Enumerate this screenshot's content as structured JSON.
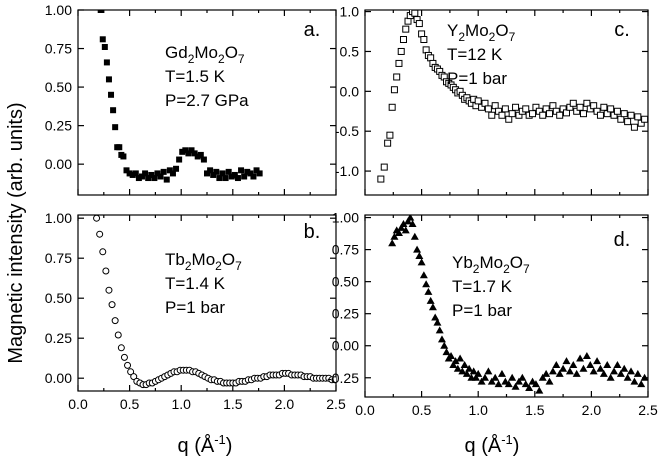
{
  "figure": {
    "ylabel": "Magnetic intensity (arb. units)",
    "xlabel_left": {
      "main": "q (Å",
      "sup": "-1",
      "end": ")"
    },
    "xlabel_right": {
      "main": "q (Å",
      "sup": "-1",
      "end": ")"
    }
  },
  "chart_data": [
    {
      "id": "a",
      "type": "scatter",
      "marker": "square-filled",
      "panel_label": "a.",
      "compound": {
        "base": "Gd",
        "sub1": "2",
        "mid": "Mo",
        "sub2": "2",
        "end": "O",
        "sub3": "7"
      },
      "conditions": [
        "T=1.5 K",
        "P=2.7 GPa"
      ],
      "xlim": [
        0,
        2.5
      ],
      "ylim": [
        -0.2,
        1.0
      ],
      "yticks": [
        "1.00",
        "0.75",
        "0.50",
        "0.25",
        "0.00"
      ],
      "ytick_values": [
        1.0,
        0.75,
        0.5,
        0.25,
        0.0
      ],
      "xticks": [],
      "x": [
        0.22,
        0.24,
        0.26,
        0.28,
        0.3,
        0.32,
        0.34,
        0.36,
        0.38,
        0.4,
        0.42,
        0.44,
        0.47,
        0.5,
        0.53,
        0.56,
        0.59,
        0.62,
        0.65,
        0.68,
        0.71,
        0.74,
        0.77,
        0.8,
        0.83,
        0.86,
        0.89,
        0.92,
        0.95,
        0.98,
        1.01,
        1.04,
        1.07,
        1.1,
        1.13,
        1.16,
        1.19,
        1.22,
        1.25,
        1.28,
        1.31,
        1.34,
        1.37,
        1.4,
        1.43,
        1.46,
        1.49,
        1.52,
        1.55,
        1.58,
        1.61,
        1.64,
        1.67,
        1.7,
        1.73,
        1.76
      ],
      "y": [
        1.0,
        0.81,
        0.76,
        0.66,
        0.55,
        0.45,
        0.35,
        0.24,
        0.11,
        0.11,
        0.06,
        0.05,
        -0.04,
        -0.06,
        -0.07,
        -0.06,
        -0.09,
        -0.08,
        -0.06,
        -0.09,
        -0.07,
        -0.09,
        -0.06,
        -0.08,
        -0.05,
        -0.1,
        -0.04,
        -0.06,
        -0.03,
        0.03,
        0.08,
        0.09,
        0.07,
        0.09,
        0.07,
        0.05,
        0.06,
        0.03,
        -0.06,
        -0.04,
        -0.07,
        -0.05,
        -0.09,
        -0.06,
        -0.09,
        -0.05,
        -0.08,
        -0.07,
        -0.09,
        -0.04,
        -0.08,
        -0.05,
        -0.06,
        -0.08,
        -0.04,
        -0.06
      ]
    },
    {
      "id": "b",
      "type": "scatter",
      "marker": "circle-open",
      "panel_label": "b.",
      "compound": {
        "base": "Tb",
        "sub1": "2",
        "mid": "Mo",
        "sub2": "2",
        "end": "O",
        "sub3": "7"
      },
      "conditions": [
        "T=1.4 K",
        "P=1 bar"
      ],
      "xlim": [
        0,
        2.5
      ],
      "ylim": [
        -0.08,
        1.02
      ],
      "yticks": [
        "1.00",
        "0.75",
        "0.50",
        "0.25",
        "0.00"
      ],
      "ytick_values": [
        1.0,
        0.75,
        0.5,
        0.25,
        0.0
      ],
      "xticks": [
        "0.0",
        "0.5",
        "1.0",
        "1.5",
        "2.0",
        "2.5"
      ],
      "xtick_values": [
        0.0,
        0.5,
        1.0,
        1.5,
        2.0,
        2.5
      ],
      "x": [
        0.18,
        0.21,
        0.24,
        0.27,
        0.3,
        0.33,
        0.36,
        0.39,
        0.42,
        0.45,
        0.48,
        0.51,
        0.54,
        0.57,
        0.6,
        0.63,
        0.66,
        0.69,
        0.72,
        0.75,
        0.78,
        0.81,
        0.84,
        0.87,
        0.9,
        0.93,
        0.96,
        0.99,
        1.02,
        1.05,
        1.08,
        1.11,
        1.14,
        1.17,
        1.2,
        1.23,
        1.26,
        1.29,
        1.32,
        1.35,
        1.38,
        1.41,
        1.44,
        1.47,
        1.5,
        1.53,
        1.56,
        1.59,
        1.62,
        1.65,
        1.68,
        1.71,
        1.74,
        1.77,
        1.8,
        1.83,
        1.86,
        1.89,
        1.92,
        1.95,
        1.98,
        2.01,
        2.04,
        2.07,
        2.1,
        2.13,
        2.16,
        2.19,
        2.22,
        2.25,
        2.28,
        2.31,
        2.34,
        2.37,
        2.4,
        2.43,
        2.46,
        2.49
      ],
      "y": [
        1.0,
        0.9,
        0.79,
        0.67,
        0.55,
        0.46,
        0.36,
        0.27,
        0.19,
        0.13,
        0.08,
        0.04,
        0.01,
        -0.02,
        -0.03,
        -0.04,
        -0.04,
        -0.03,
        -0.03,
        -0.02,
        -0.01,
        0.0,
        0.01,
        0.02,
        0.03,
        0.04,
        0.04,
        0.05,
        0.05,
        0.05,
        0.05,
        0.04,
        0.04,
        0.03,
        0.02,
        0.01,
        0.0,
        -0.01,
        -0.01,
        -0.02,
        -0.02,
        -0.03,
        -0.03,
        -0.03,
        -0.03,
        -0.03,
        -0.02,
        -0.02,
        -0.02,
        -0.01,
        -0.01,
        0.0,
        0.0,
        0.0,
        0.01,
        0.01,
        0.02,
        0.02,
        0.02,
        0.02,
        0.03,
        0.03,
        0.03,
        0.02,
        0.02,
        0.02,
        0.02,
        0.01,
        0.01,
        0.01,
        0.0,
        0.0,
        0.0,
        0.0,
        0.0,
        0.0,
        -0.01,
        -0.01
      ]
    },
    {
      "id": "c",
      "type": "scatter",
      "marker": "square-open",
      "panel_label": "c.",
      "compound": {
        "base": "Y",
        "sub1": "2",
        "mid": "Mo",
        "sub2": "2",
        "end": "O",
        "sub3": "7"
      },
      "conditions": [
        "T=12 K",
        "P=1 bar"
      ],
      "xlim": [
        0,
        2.5
      ],
      "ylim": [
        -1.3,
        1.02
      ],
      "yticks": [
        "1.0",
        "0.5",
        "0.0",
        "-0.5",
        "-1.0"
      ],
      "ytick_values": [
        1.0,
        0.5,
        0.0,
        -0.5,
        -1.0
      ],
      "xticks": [],
      "x": [
        0.14,
        0.17,
        0.2,
        0.22,
        0.24,
        0.26,
        0.28,
        0.3,
        0.32,
        0.34,
        0.36,
        0.38,
        0.4,
        0.42,
        0.44,
        0.46,
        0.48,
        0.5,
        0.52,
        0.54,
        0.56,
        0.58,
        0.6,
        0.62,
        0.64,
        0.66,
        0.68,
        0.7,
        0.72,
        0.74,
        0.76,
        0.78,
        0.8,
        0.82,
        0.84,
        0.86,
        0.88,
        0.9,
        0.92,
        0.94,
        0.96,
        0.98,
        1.0,
        1.03,
        1.06,
        1.09,
        1.12,
        1.15,
        1.18,
        1.21,
        1.24,
        1.27,
        1.3,
        1.33,
        1.36,
        1.39,
        1.42,
        1.45,
        1.48,
        1.51,
        1.54,
        1.57,
        1.6,
        1.63,
        1.66,
        1.69,
        1.72,
        1.75,
        1.78,
        1.81,
        1.84,
        1.87,
        1.9,
        1.93,
        1.96,
        1.99,
        2.02,
        2.05,
        2.08,
        2.11,
        2.14,
        2.17,
        2.2,
        2.23,
        2.26,
        2.29,
        2.32,
        2.35,
        2.38,
        2.41,
        2.44,
        2.47
      ],
      "y": [
        -1.1,
        -0.95,
        -0.65,
        -0.55,
        -0.2,
        0.02,
        0.18,
        0.35,
        0.5,
        0.65,
        0.78,
        0.88,
        0.95,
        1.0,
        0.98,
        0.9,
        0.85,
        0.72,
        0.65,
        0.52,
        0.45,
        0.42,
        0.35,
        0.3,
        0.28,
        0.25,
        0.2,
        0.18,
        0.12,
        0.1,
        0.08,
        0.05,
        0.02,
        -0.02,
        0.0,
        -0.05,
        -0.1,
        -0.08,
        -0.12,
        -0.15,
        -0.1,
        -0.18,
        -0.12,
        -0.2,
        -0.15,
        -0.22,
        -0.3,
        -0.18,
        -0.25,
        -0.3,
        -0.22,
        -0.35,
        -0.28,
        -0.2,
        -0.3,
        -0.25,
        -0.22,
        -0.3,
        -0.28,
        -0.2,
        -0.25,
        -0.3,
        -0.22,
        -0.28,
        -0.18,
        -0.25,
        -0.3,
        -0.22,
        -0.27,
        -0.2,
        -0.15,
        -0.25,
        -0.2,
        -0.28,
        -0.15,
        -0.22,
        -0.18,
        -0.25,
        -0.3,
        -0.2,
        -0.28,
        -0.22,
        -0.3,
        -0.25,
        -0.35,
        -0.28,
        -0.38,
        -0.3,
        -0.45,
        -0.32,
        -0.4,
        -0.35
      ]
    },
    {
      "id": "d",
      "type": "scatter",
      "marker": "triangle-filled",
      "panel_label": "d.",
      "compound": {
        "base": "Yb",
        "sub1": "2",
        "mid": "Mo",
        "sub2": "2",
        "end": "O",
        "sub3": "7"
      },
      "conditions": [
        "T=1.7 K",
        "P=1 bar"
      ],
      "xlim": [
        0,
        2.5
      ],
      "ylim": [
        -0.4,
        1.02
      ],
      "yticks": [
        "1.00",
        "0.75",
        "0.50",
        "0.25",
        "0.00",
        "-0.25"
      ],
      "ytick_values": [
        1.0,
        0.75,
        0.5,
        0.25,
        0.0,
        -0.25
      ],
      "xticks": [
        "0.0",
        "0.5",
        "1.0",
        "1.5",
        "2.0",
        "2.5"
      ],
      "xtick_values": [
        0.0,
        0.5,
        1.0,
        1.5,
        2.0,
        2.5
      ],
      "x": [
        0.24,
        0.26,
        0.28,
        0.3,
        0.32,
        0.34,
        0.36,
        0.38,
        0.4,
        0.42,
        0.44,
        0.46,
        0.48,
        0.5,
        0.52,
        0.54,
        0.56,
        0.58,
        0.6,
        0.62,
        0.64,
        0.66,
        0.68,
        0.7,
        0.72,
        0.74,
        0.76,
        0.78,
        0.8,
        0.82,
        0.84,
        0.86,
        0.88,
        0.9,
        0.92,
        0.94,
        0.96,
        0.98,
        1.0,
        1.03,
        1.06,
        1.09,
        1.12,
        1.15,
        1.18,
        1.21,
        1.24,
        1.27,
        1.3,
        1.33,
        1.36,
        1.39,
        1.42,
        1.45,
        1.48,
        1.51,
        1.54,
        1.57,
        1.6,
        1.63,
        1.66,
        1.69,
        1.72,
        1.75,
        1.78,
        1.81,
        1.84,
        1.87,
        1.9,
        1.93,
        1.96,
        1.99,
        2.02,
        2.05,
        2.08,
        2.11,
        2.14,
        2.17,
        2.2,
        2.23,
        2.26,
        2.29,
        2.32,
        2.35,
        2.38,
        2.41,
        2.44,
        2.47
      ],
      "y": [
        0.8,
        0.85,
        0.9,
        0.88,
        0.92,
        0.95,
        0.9,
        0.97,
        1.0,
        0.95,
        0.85,
        0.75,
        0.7,
        0.65,
        0.55,
        0.48,
        0.42,
        0.35,
        0.3,
        0.22,
        0.18,
        0.12,
        0.05,
        0.0,
        -0.05,
        -0.1,
        -0.08,
        -0.15,
        -0.12,
        -0.18,
        -0.1,
        -0.2,
        -0.15,
        -0.22,
        -0.18,
        -0.25,
        -0.2,
        -0.25,
        -0.22,
        -0.28,
        -0.25,
        -0.2,
        -0.28,
        -0.25,
        -0.3,
        -0.22,
        -0.28,
        -0.3,
        -0.25,
        -0.32,
        -0.28,
        -0.25,
        -0.3,
        -0.33,
        -0.28,
        -0.3,
        -0.35,
        -0.25,
        -0.22,
        -0.28,
        -0.2,
        -0.15,
        -0.22,
        -0.18,
        -0.12,
        -0.2,
        -0.15,
        -0.22,
        -0.1,
        -0.18,
        -0.08,
        -0.15,
        -0.2,
        -0.12,
        -0.18,
        -0.22,
        -0.15,
        -0.25,
        -0.2,
        -0.15,
        -0.22,
        -0.18,
        -0.25,
        -0.2,
        -0.28,
        -0.22,
        -0.3,
        -0.25
      ]
    }
  ]
}
